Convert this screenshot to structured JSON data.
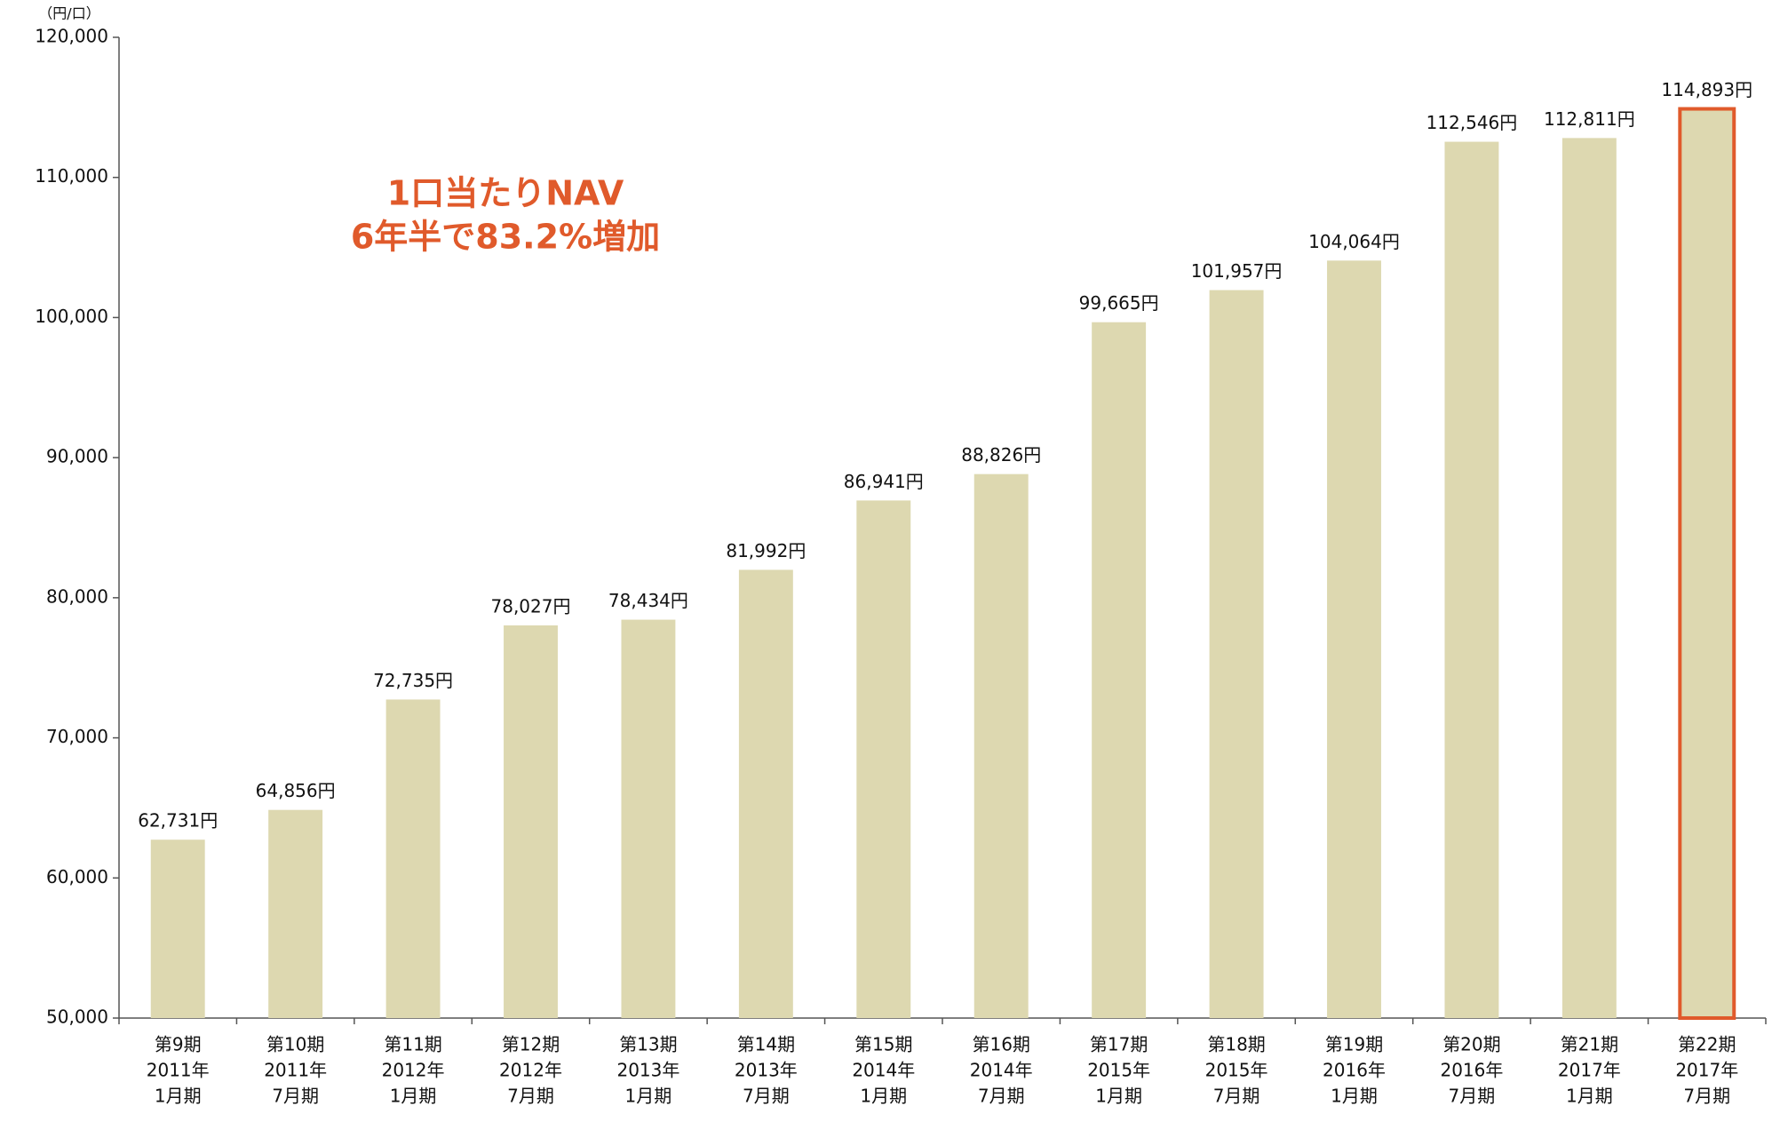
{
  "chart_data": {
    "type": "bar",
    "y_unit_label": "（円/口）",
    "annotation": [
      "1口当たりNAV",
      "6年半で83.2%増加"
    ],
    "categories": [
      [
        "第9期",
        "2011年",
        "1月期"
      ],
      [
        "第10期",
        "2011年",
        "7月期"
      ],
      [
        "第11期",
        "2012年",
        "1月期"
      ],
      [
        "第12期",
        "2012年",
        "7月期"
      ],
      [
        "第13期",
        "2013年",
        "1月期"
      ],
      [
        "第14期",
        "2013年",
        "7月期"
      ],
      [
        "第15期",
        "2014年",
        "1月期"
      ],
      [
        "第16期",
        "2014年",
        "7月期"
      ],
      [
        "第17期",
        "2015年",
        "1月期"
      ],
      [
        "第18期",
        "2015年",
        "7月期"
      ],
      [
        "第19期",
        "2016年",
        "1月期"
      ],
      [
        "第20期",
        "2016年",
        "7月期"
      ],
      [
        "第21期",
        "2017年",
        "1月期"
      ],
      [
        "第22期",
        "2017年",
        "7月期"
      ]
    ],
    "values": [
      62731,
      64856,
      72735,
      78027,
      78434,
      81992,
      86941,
      88826,
      99665,
      101957,
      104064,
      112546,
      112811,
      114893
    ],
    "value_labels": [
      "62,731円",
      "64,856円",
      "72,735円",
      "78,027円",
      "78,434円",
      "81,992円",
      "86,941円",
      "88,826円",
      "99,665円",
      "101,957円",
      "104,064円",
      "112,546円",
      "112,811円",
      "114,893円"
    ],
    "color": "#ddd8b0",
    "highlight": {
      "index": 13,
      "color": "#e05a2b"
    },
    "ylim": [
      50000,
      120000
    ],
    "yticks": [
      {
        "value": 50000,
        "label": "50,000"
      },
      {
        "value": 60000,
        "label": "60,000"
      },
      {
        "value": 70000,
        "label": "70,000"
      },
      {
        "value": 80000,
        "label": "80,000"
      },
      {
        "value": 90000,
        "label": "90,000"
      },
      {
        "value": 100000,
        "label": "100,000"
      },
      {
        "value": 110000,
        "label": "110,000"
      },
      {
        "value": 120000,
        "label": "120,000"
      }
    ],
    "grid": false
  }
}
